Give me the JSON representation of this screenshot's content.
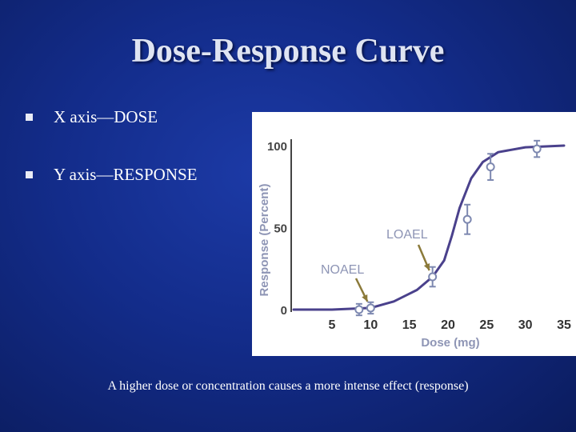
{
  "slide": {
    "title": "Dose-Response Curve",
    "bullets": [
      {
        "text": "X axis—DOSE"
      },
      {
        "text": "Y axis—RESPONSE"
      }
    ],
    "caption": "A higher dose or concentration causes a more intense effect (response)"
  },
  "colors": {
    "background": "#132c8a",
    "title": "#dfe4f2",
    "text": "#ffffff",
    "curve": "#4a418c",
    "data_points": "#7d88b0",
    "axis_labels": "#8e95b5"
  },
  "chart_data": {
    "type": "line",
    "xlabel": "Dose (mg)",
    "ylabel": "Response (Percent)",
    "x_ticks": [
      5,
      10,
      15,
      20,
      25,
      30,
      35
    ],
    "y_ticks": [
      0,
      50,
      100
    ],
    "xlim": [
      0,
      35
    ],
    "ylim": [
      0,
      100
    ],
    "grid": false,
    "series": [
      {
        "values": [
          [
            0,
            0
          ],
          [
            5,
            0
          ],
          [
            10,
            1
          ],
          [
            13,
            5
          ],
          [
            16,
            12
          ],
          [
            18,
            20
          ],
          [
            19.5,
            30
          ],
          [
            20.5,
            45
          ],
          [
            21.5,
            62
          ],
          [
            23,
            80
          ],
          [
            24.5,
            90
          ],
          [
            26.5,
            96
          ],
          [
            30,
            99
          ],
          [
            35,
            100
          ]
        ]
      }
    ],
    "data_points": [
      {
        "x": 8.5,
        "y": 0,
        "err": 3.5
      },
      {
        "x": 10,
        "y": 1,
        "err": 3.5
      },
      {
        "x": 18,
        "y": 20,
        "err": 6
      },
      {
        "x": 22.5,
        "y": 55,
        "err": 9
      },
      {
        "x": 25.5,
        "y": 87,
        "err": 8
      },
      {
        "x": 31.5,
        "y": 98,
        "err": 5
      }
    ],
    "annotations": [
      {
        "text": "NOAEL",
        "target_x": 10,
        "target_y": 1
      },
      {
        "text": "LOAEL",
        "target_x": 18,
        "target_y": 20
      }
    ]
  }
}
